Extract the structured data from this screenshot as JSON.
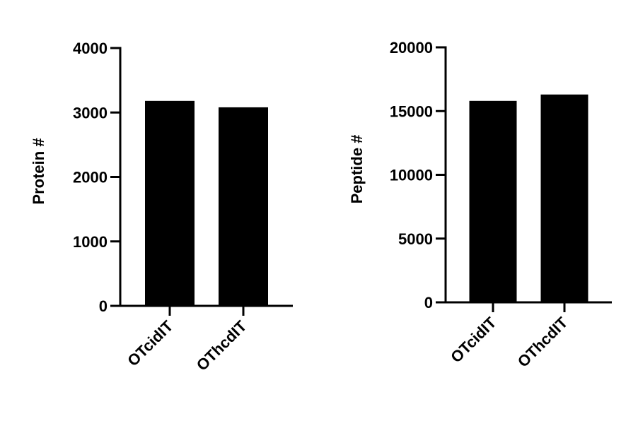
{
  "chart_data": [
    {
      "type": "bar",
      "y_label": "Protein #",
      "categories": [
        "OTcidIT",
        "OThcdIT"
      ],
      "values": [
        3180,
        3080
      ],
      "color": "#000000",
      "ylim": [
        0,
        4000
      ],
      "yticks": [
        0,
        1000,
        2000,
        3000,
        4000
      ]
    },
    {
      "type": "bar",
      "y_label": "Peptide #",
      "categories": [
        "OTcidIT",
        "OThcdIT"
      ],
      "values": [
        15800,
        16300
      ],
      "color": "#000000",
      "ylim": [
        0,
        20000
      ],
      "yticks": [
        0,
        5000,
        10000,
        15000,
        20000
      ]
    }
  ]
}
